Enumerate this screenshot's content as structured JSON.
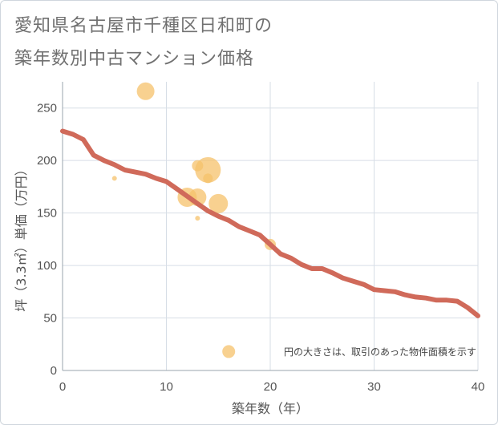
{
  "title_line1": "愛知県名古屋市千種区日和町の",
  "title_line2": "築年数別中古マンション価格",
  "chart_data": {
    "type": "scatter",
    "xlabel": "築年数（年）",
    "ylabel": "坪（3.3㎡）単価（万円）",
    "xlim": [
      0,
      40
    ],
    "ylim": [
      0,
      275
    ],
    "x_ticks": [
      "0",
      "10",
      "20",
      "30",
      "40"
    ],
    "y_ticks": [
      "0",
      "50",
      "100",
      "150",
      "200",
      "250"
    ],
    "grid": true,
    "legend_note": "円の大きさは、取引のあった物件面積を示す",
    "bubble_color": "#f5c26b",
    "line_color": "#d06a5a",
    "scatter_points": [
      {
        "x": 8,
        "y": 266,
        "size": 22
      },
      {
        "x": 5,
        "y": 183,
        "size": 6
      },
      {
        "x": 12,
        "y": 165,
        "size": 24
      },
      {
        "x": 13,
        "y": 195,
        "size": 14
      },
      {
        "x": 13,
        "y": 165,
        "size": 22
      },
      {
        "x": 13,
        "y": 145,
        "size": 6
      },
      {
        "x": 14,
        "y": 191,
        "size": 32
      },
      {
        "x": 14,
        "y": 183,
        "size": 12
      },
      {
        "x": 15,
        "y": 159,
        "size": 24
      },
      {
        "x": 20,
        "y": 120,
        "size": 14
      },
      {
        "x": 16,
        "y": 18,
        "size": 16
      }
    ],
    "trend_line": {
      "x": [
        0,
        1,
        2,
        3,
        4,
        5,
        6,
        7,
        8,
        9,
        10,
        11,
        12,
        13,
        14,
        15,
        16,
        17,
        18,
        19,
        20,
        21,
        22,
        23,
        24,
        25,
        26,
        27,
        28,
        29,
        30,
        31,
        32,
        33,
        34,
        35,
        36,
        37,
        38,
        39,
        40
      ],
      "y": [
        228,
        225,
        220,
        205,
        200,
        196,
        191,
        189,
        187,
        183,
        180,
        173,
        166,
        159,
        152,
        147,
        143,
        137,
        133,
        129,
        120,
        111,
        107,
        101,
        97,
        97,
        93,
        88,
        85,
        82,
        77,
        76,
        75,
        72,
        70,
        69,
        67,
        67,
        66,
        60,
        52
      ]
    }
  }
}
